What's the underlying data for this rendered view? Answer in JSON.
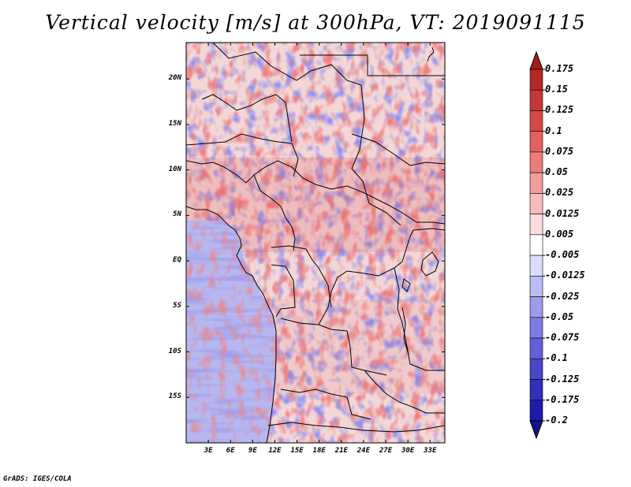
{
  "title": "Vertical velocity [m/s] at 300hPa, VT: 2019091115",
  "credit": "GrADS: IGES/COLA",
  "map": {
    "lon_range": [
      0,
      35
    ],
    "lat_range": [
      -20,
      24
    ],
    "lat_labels": [
      {
        "text": "20N",
        "lat": 20
      },
      {
        "text": "15N",
        "lat": 15
      },
      {
        "text": "10N",
        "lat": 10
      },
      {
        "text": "5N",
        "lat": 5
      },
      {
        "text": "EQ",
        "lat": 0
      },
      {
        "text": "5S",
        "lat": -5
      },
      {
        "text": "10S",
        "lat": -10
      },
      {
        "text": "15S",
        "lat": -15
      }
    ],
    "lon_labels": [
      {
        "text": "3E",
        "lon": 3
      },
      {
        "text": "6E",
        "lon": 6
      },
      {
        "text": "9E",
        "lon": 9
      },
      {
        "text": "12E",
        "lon": 12
      },
      {
        "text": "15E",
        "lon": 15
      },
      {
        "text": "18E",
        "lon": 18
      },
      {
        "text": "21E",
        "lon": 21
      },
      {
        "text": "24E",
        "lon": 24
      },
      {
        "text": "27E",
        "lon": 27
      },
      {
        "text": "30E",
        "lon": 30
      },
      {
        "text": "33E",
        "lon": 33
      }
    ]
  },
  "colorbar": {
    "labels": [
      "0.175",
      "0.15",
      "0.125",
      "0.1",
      "0.075",
      "0.05",
      "0.025",
      "0.0125",
      "0.005",
      "-0.005",
      "-0.0125",
      "-0.025",
      "-0.05",
      "-0.075",
      "-0.1",
      "-0.125",
      "-0.175",
      "-0.2"
    ],
    "colors": [
      "#a51c1c",
      "#b52828",
      "#c53838",
      "#d54848",
      "#e26060",
      "#ea7c7c",
      "#f29c9c",
      "#f8bcbc",
      "#fcdcdc",
      "#ffffff",
      "#dcdcfc",
      "#bcbcf4",
      "#9c9cec",
      "#7c7ce4",
      "#6060d8",
      "#4848c8",
      "#3030b8",
      "#1c1ca8",
      "#14148c"
    ]
  }
}
